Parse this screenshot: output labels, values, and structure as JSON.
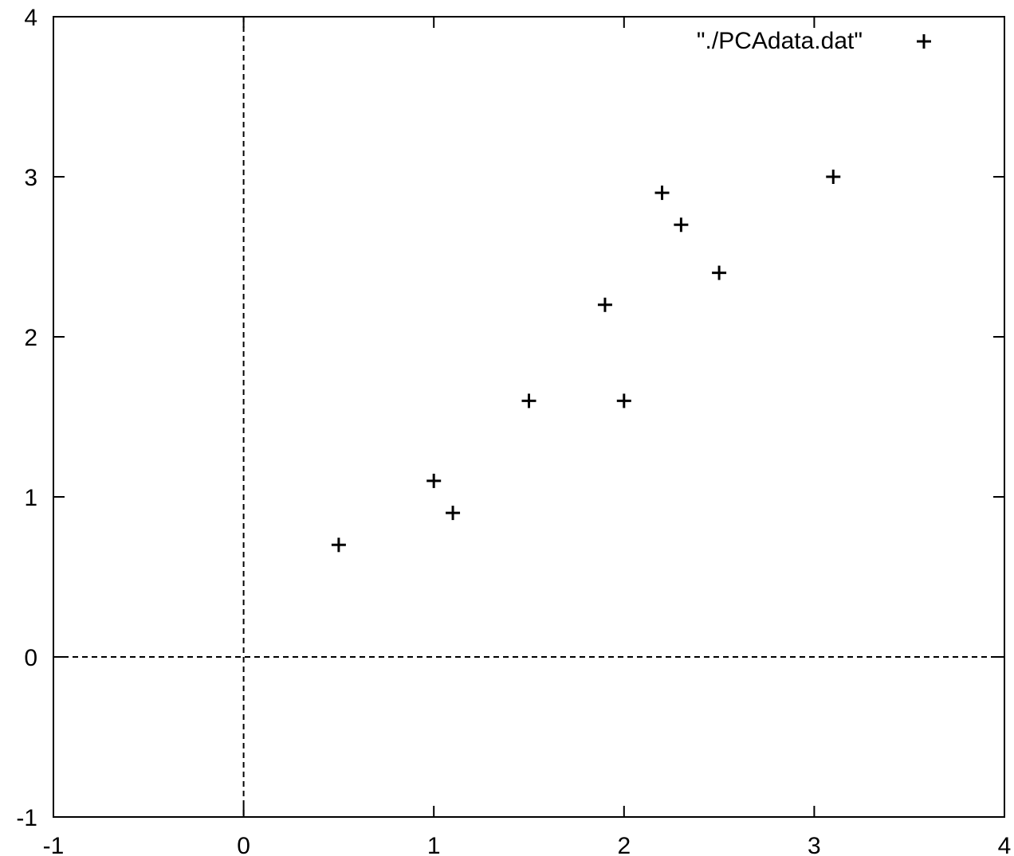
{
  "chart_data": {
    "type": "scatter",
    "title": "",
    "xlabel": "",
    "ylabel": "",
    "xlim": [
      -1,
      4
    ],
    "ylim": [
      -1,
      4
    ],
    "x_ticks": [
      -1,
      0,
      1,
      2,
      3,
      4
    ],
    "y_ticks": [
      -1,
      0,
      1,
      2,
      3,
      4
    ],
    "x_tick_labels": [
      "-1",
      "0",
      "1",
      "2",
      "3",
      "4"
    ],
    "y_tick_labels": [
      "-1",
      "0",
      "1",
      "2",
      "3",
      "4"
    ],
    "zero_axes": "dashed",
    "grid": false,
    "legend_position": "top-right",
    "series": [
      {
        "name": "\"./PCAdata.dat\"",
        "marker": "plus",
        "color": "#000000",
        "points": [
          {
            "x": 0.5,
            "y": 0.7
          },
          {
            "x": 1.0,
            "y": 1.1
          },
          {
            "x": 1.1,
            "y": 0.9
          },
          {
            "x": 1.5,
            "y": 1.6
          },
          {
            "x": 2.0,
            "y": 1.6
          },
          {
            "x": 1.9,
            "y": 2.2
          },
          {
            "x": 2.2,
            "y": 2.9
          },
          {
            "x": 2.3,
            "y": 2.7
          },
          {
            "x": 2.5,
            "y": 2.4
          },
          {
            "x": 3.1,
            "y": 3.0
          }
        ]
      }
    ]
  }
}
